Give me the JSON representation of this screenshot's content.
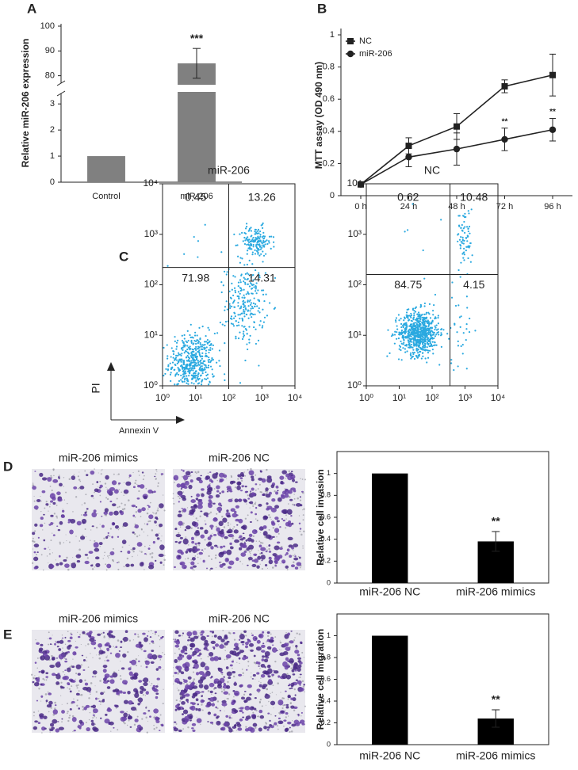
{
  "chart_data": [
    {
      "type": "bar",
      "panel_label": "A",
      "ylabel": "Relative miR-206 expression",
      "categories": [
        "Control",
        "miR-206"
      ],
      "values": [
        1,
        85
      ],
      "errors": [
        null,
        6
      ],
      "significance": [
        null,
        "***"
      ],
      "color": "#808080",
      "ylim": [
        0,
        100
      ],
      "break": [
        3.4,
        77
      ],
      "yticks": [
        0,
        1,
        2,
        3,
        80,
        90,
        100
      ]
    },
    {
      "type": "line",
      "panel_label": "B",
      "ylabel": "MTT assay (OD 490 nm)",
      "categories": [
        "0 h",
        "24 h",
        "48 h",
        "72 h",
        "96 h"
      ],
      "ylim": [
        0,
        1
      ],
      "yticks": [
        0,
        0.2,
        0.4,
        0.6,
        0.8,
        1
      ],
      "legend": "upper left",
      "series": [
        {
          "name": "NC",
          "color": "#222222",
          "marker": "square",
          "values": [
            0.07,
            0.31,
            0.43,
            0.68,
            0.75
          ],
          "errors": [
            0.01,
            0.05,
            0.08,
            0.04,
            0.13
          ]
        },
        {
          "name": "miR-206",
          "color": "#222222",
          "marker": "circle",
          "values": [
            0.07,
            0.24,
            0.29,
            0.35,
            0.41
          ],
          "errors": [
            0.01,
            0.06,
            0.1,
            0.07,
            0.07
          ],
          "significance": [
            null,
            null,
            null,
            "**",
            "**"
          ]
        }
      ]
    },
    {
      "type": "scatter",
      "panel_label": "C",
      "title": "miR-206",
      "xlabel": "Annexin V",
      "ylabel": "PI",
      "log": true,
      "xlim": [
        1,
        10000
      ],
      "ylim": [
        1,
        10000
      ],
      "xticks": [
        {
          "value": 1,
          "label": "10⁰"
        },
        {
          "value": 10,
          "label": "10¹"
        },
        {
          "value": 100,
          "label": "10²"
        },
        {
          "value": 1000,
          "label": "10³"
        },
        {
          "value": 10000,
          "label": "10⁴"
        }
      ],
      "yticks": [
        {
          "value": 1,
          "label": "10⁰"
        },
        {
          "value": 10,
          "label": "10¹"
        },
        {
          "value": 100,
          "label": "10²"
        },
        {
          "value": 1000,
          "label": "10³"
        },
        {
          "value": 10000,
          "label": "10⁴"
        }
      ],
      "gate": [
        100,
        220
      ],
      "quadrant_percentages": [
        0.45,
        13.26,
        71.98,
        14.31
      ],
      "color": "#2aa9e0"
    },
    {
      "type": "scatter",
      "title": "NC",
      "log": true,
      "xlim": [
        1,
        10000
      ],
      "ylim": [
        1,
        10000
      ],
      "xticks": [
        {
          "value": 1,
          "label": "10⁰"
        },
        {
          "value": 10,
          "label": "10¹"
        },
        {
          "value": 100,
          "label": "10²"
        },
        {
          "value": 1000,
          "label": "10³"
        },
        {
          "value": 10000,
          "label": "10⁴"
        }
      ],
      "yticks": [
        {
          "value": 1,
          "label": "10⁰"
        },
        {
          "value": 10,
          "label": "10¹"
        },
        {
          "value": 100,
          "label": "10²"
        },
        {
          "value": 1000,
          "label": "10³"
        },
        {
          "value": 10000,
          "label": "10⁴"
        }
      ],
      "gate": [
        350,
        160
      ],
      "quadrant_percentages": [
        0.62,
        10.48,
        84.75,
        4.15
      ],
      "color": "#2aa9e0"
    },
    {
      "type": "bar",
      "panel_label": "D",
      "image_captions": [
        "miR-206 mimics",
        "miR-206 NC"
      ],
      "ylabel": "Relative cell invasion",
      "categories": [
        "miR-206 NC",
        "miR-206 mimics"
      ],
      "values": [
        1,
        0.38
      ],
      "errors": [
        null,
        0.09
      ],
      "significance": [
        null,
        "**"
      ],
      "color": "#000000",
      "ylim": [
        0,
        1.2
      ],
      "yticks": [
        0,
        0.2,
        0.4,
        0.6,
        0.8,
        1
      ],
      "frame": true
    },
    {
      "type": "bar",
      "panel_label": "E",
      "image_captions": [
        "miR-206 mimics",
        "miR-206 NC"
      ],
      "ylabel": "Relative cell migration",
      "categories": [
        "miR-206 NC",
        "miR-206 mimics"
      ],
      "values": [
        1,
        0.24
      ],
      "errors": [
        null,
        0.08
      ],
      "significance": [
        null,
        "**"
      ],
      "color": "#000000",
      "ylim": [
        0,
        1.2
      ],
      "yticks": [
        0,
        0.2,
        0.4,
        0.6,
        0.8,
        1
      ],
      "frame": true
    }
  ]
}
